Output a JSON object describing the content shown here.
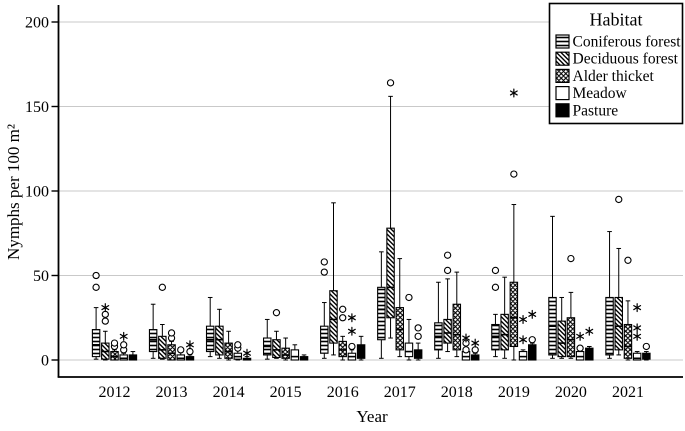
{
  "figure": {
    "background": "#ffffff",
    "axis_color": "#000000",
    "gridline_color": "#c9c9c9"
  },
  "chart_data": {
    "type": "boxplot",
    "title": "",
    "xlabel": "Year",
    "ylabel": "Nymphs per 100 m²",
    "ylim": [
      0,
      210
    ],
    "yticks": [
      0,
      50,
      100,
      150,
      200
    ],
    "grid": "horizontal",
    "categories": [
      "2012",
      "2013",
      "2014",
      "2015",
      "2016",
      "2017",
      "2018",
      "2019",
      "2020",
      "2021"
    ],
    "legend": {
      "title": "Habitat",
      "position": "top-right"
    },
    "marker_meaning": {
      "circle": "outlier",
      "asterisk": "extreme outlier"
    },
    "series": [
      {
        "name": "Coniferous forest",
        "fill_pattern": "horizontal-lines",
        "boxes": [
          {
            "lo": 0.5,
            "q1": 2,
            "med": 9,
            "q3": 18,
            "hi": 31,
            "out": [
              43,
              50
            ],
            "ext": []
          },
          {
            "lo": 1,
            "q1": 5,
            "med": 12,
            "q3": 18,
            "hi": 33,
            "out": [],
            "ext": []
          },
          {
            "lo": 2,
            "q1": 5,
            "med": 12,
            "q3": 20,
            "hi": 37,
            "out": [],
            "ext": []
          },
          {
            "lo": 0.5,
            "q1": 3,
            "med": 8,
            "q3": 13,
            "hi": 24,
            "out": [],
            "ext": []
          },
          {
            "lo": 1,
            "q1": 4,
            "med": 13,
            "q3": 20,
            "hi": 34,
            "out": [
              52,
              58
            ],
            "ext": []
          },
          {
            "lo": 1,
            "q1": 12,
            "med": 30,
            "q3": 43,
            "hi": 64,
            "out": [],
            "ext": []
          },
          {
            "lo": 1,
            "q1": 6,
            "med": 14,
            "q3": 22,
            "hi": 46,
            "out": [],
            "ext": []
          },
          {
            "lo": 2,
            "q1": 6,
            "med": 14,
            "q3": 21,
            "hi": 27,
            "out": [
              43,
              53
            ],
            "ext": []
          },
          {
            "lo": 1,
            "q1": 3,
            "med": 20,
            "q3": 37,
            "hi": 85,
            "out": [],
            "ext": []
          },
          {
            "lo": 1,
            "q1": 3,
            "med": 18,
            "q3": 37,
            "hi": 76,
            "out": [],
            "ext": []
          }
        ]
      },
      {
        "name": "Deciduous forest",
        "fill_pattern": "diagonal-lines",
        "boxes": [
          {
            "lo": 0,
            "q1": 0.5,
            "med": 5,
            "q3": 10,
            "hi": 17,
            "out": [
              23,
              27
            ],
            "ext": [
              31
            ]
          },
          {
            "lo": 0.5,
            "q1": 1,
            "med": 6,
            "q3": 14,
            "hi": 21,
            "out": [
              43
            ],
            "ext": []
          },
          {
            "lo": 1,
            "q1": 3,
            "med": 12,
            "q3": 20,
            "hi": 30,
            "out": [],
            "ext": []
          },
          {
            "lo": 1,
            "q1": 1.5,
            "med": 6,
            "q3": 12,
            "hi": 17,
            "out": [
              28
            ],
            "ext": []
          },
          {
            "lo": 3,
            "q1": 10,
            "med": 24,
            "q3": 41,
            "hi": 93,
            "out": [],
            "ext": []
          },
          {
            "lo": 13,
            "q1": 25,
            "med": 43,
            "q3": 78,
            "hi": 156,
            "out": [
              164
            ],
            "ext": []
          },
          {
            "lo": 5,
            "q1": 10,
            "med": 16,
            "q3": 24,
            "hi": 48,
            "out": [
              53,
              62
            ],
            "ext": []
          },
          {
            "lo": 1,
            "q1": 6,
            "med": 15,
            "q3": 27,
            "hi": 49,
            "out": [],
            "ext": []
          },
          {
            "lo": 1,
            "q1": 2,
            "med": 10,
            "q3": 23,
            "hi": 37,
            "out": [],
            "ext": []
          },
          {
            "lo": 3,
            "q1": 6,
            "med": 20,
            "q3": 37,
            "hi": 66,
            "out": [
              95
            ],
            "ext": []
          }
        ]
      },
      {
        "name": "Alder thicket",
        "fill_pattern": "crosshatch",
        "boxes": [
          {
            "lo": 0,
            "q1": 0,
            "med": 2,
            "q3": 5,
            "hi": 6,
            "out": [
              8,
              10
            ],
            "ext": []
          },
          {
            "lo": 0,
            "q1": 0,
            "med": 4,
            "q3": 9,
            "hi": 11,
            "out": [
              13,
              16
            ],
            "ext": []
          },
          {
            "lo": 0,
            "q1": 1,
            "med": 5,
            "q3": 10,
            "hi": 17,
            "out": [],
            "ext": []
          },
          {
            "lo": 0,
            "q1": 1,
            "med": 3,
            "q3": 7,
            "hi": 13,
            "out": [],
            "ext": []
          },
          {
            "lo": 0,
            "q1": 2,
            "med": 6,
            "q3": 11,
            "hi": 14,
            "out": [
              25,
              30
            ],
            "ext": []
          },
          {
            "lo": 2,
            "q1": 6,
            "med": 18,
            "q3": 31,
            "hi": 60,
            "out": [],
            "ext": []
          },
          {
            "lo": 2,
            "q1": 6,
            "med": 15,
            "q3": 33,
            "hi": 52,
            "out": [],
            "ext": []
          },
          {
            "lo": 0,
            "q1": 8,
            "med": 25,
            "q3": 46,
            "hi": 92,
            "out": [
              110
            ],
            "ext": [
              158
            ]
          },
          {
            "lo": 1,
            "q1": 2,
            "med": 12,
            "q3": 25,
            "hi": 40,
            "out": [
              60
            ],
            "ext": []
          },
          {
            "lo": 0,
            "q1": 1,
            "med": 8,
            "q3": 21,
            "hi": 35,
            "out": [
              59
            ],
            "ext": []
          }
        ]
      },
      {
        "name": "Meadow",
        "fill_pattern": "white",
        "boxes": [
          {
            "lo": 0,
            "q1": 0,
            "med": 1,
            "q3": 3,
            "hi": 4,
            "out": [
              6,
              9
            ],
            "ext": [
              14
            ]
          },
          {
            "lo": 0,
            "q1": 0,
            "med": 1,
            "q3": 3,
            "hi": 5,
            "out": [
              6
            ],
            "ext": []
          },
          {
            "lo": 0,
            "q1": 0.5,
            "med": 2,
            "q3": 4,
            "hi": 6,
            "out": [
              7,
              9
            ],
            "ext": []
          },
          {
            "lo": 0,
            "q1": 0,
            "med": 2,
            "q3": 6,
            "hi": 9,
            "out": [],
            "ext": []
          },
          {
            "lo": 0,
            "q1": 0,
            "med": 2,
            "q3": 4,
            "hi": 6,
            "out": [
              8
            ],
            "ext": [
              17,
              25
            ]
          },
          {
            "lo": 0,
            "q1": 2,
            "med": 5,
            "q3": 10,
            "hi": 24,
            "out": [
              37
            ],
            "ext": []
          },
          {
            "lo": 0,
            "q1": 0,
            "med": 2,
            "q3": 5,
            "hi": 6,
            "out": [
              6,
              10
            ],
            "ext": [
              13
            ]
          },
          {
            "lo": 0,
            "q1": 0,
            "med": 2,
            "q3": 5,
            "hi": 6,
            "out": [],
            "ext": [
              12,
              24
            ]
          },
          {
            "lo": 0,
            "q1": 0,
            "med": 2,
            "q3": 5,
            "hi": 6,
            "out": [
              7
            ],
            "ext": [
              14
            ]
          },
          {
            "lo": 0,
            "q1": 0,
            "med": 1,
            "q3": 4,
            "hi": 5,
            "out": [],
            "ext": [
              14,
              19,
              31
            ]
          }
        ]
      },
      {
        "name": "Pasture",
        "fill_pattern": "solid",
        "boxes": [
          {
            "lo": 0,
            "q1": 0,
            "med": 1,
            "q3": 3,
            "hi": 5,
            "out": [],
            "ext": []
          },
          {
            "lo": 0,
            "q1": 0,
            "med": 1,
            "q3": 2,
            "hi": 3,
            "out": [
              5
            ],
            "ext": [
              9
            ]
          },
          {
            "lo": 0,
            "q1": 0,
            "med": 0.5,
            "q3": 1,
            "hi": 2,
            "out": [],
            "ext": [
              4
            ]
          },
          {
            "lo": 0,
            "q1": 0,
            "med": 1,
            "q3": 2,
            "hi": 3,
            "out": [],
            "ext": []
          },
          {
            "lo": 0,
            "q1": 1,
            "med": 4,
            "q3": 9,
            "hi": 14,
            "out": [],
            "ext": []
          },
          {
            "lo": 0,
            "q1": 1,
            "med": 3,
            "q3": 6,
            "hi": 10,
            "out": [
              14,
              19
            ],
            "ext": []
          },
          {
            "lo": 0,
            "q1": 0,
            "med": 1,
            "q3": 3,
            "hi": 4,
            "out": [
              6
            ],
            "ext": [
              10
            ]
          },
          {
            "lo": 0,
            "q1": 0,
            "med": 3,
            "q3": 9,
            "hi": 10,
            "out": [
              12
            ],
            "ext": [
              27
            ]
          },
          {
            "lo": 0,
            "q1": 0,
            "med": 3,
            "q3": 7,
            "hi": 8,
            "out": [],
            "ext": [
              17
            ]
          },
          {
            "lo": 0,
            "q1": 0.5,
            "med": 2,
            "q3": 4,
            "hi": 5,
            "out": [
              8
            ],
            "ext": []
          }
        ]
      }
    ]
  }
}
